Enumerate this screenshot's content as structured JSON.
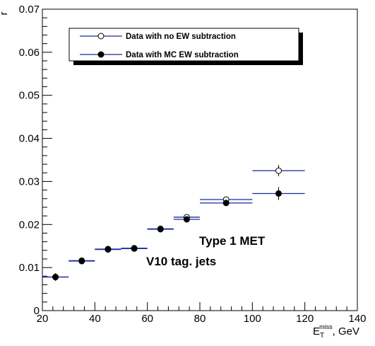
{
  "chart_data": {
    "type": "scatter",
    "xlabel": "E",
    "xlabel_sub": "T",
    "xlabel_sup": "miss",
    "xlabel_unit": ", GeV",
    "ylabel": "r",
    "xlim": [
      20,
      140
    ],
    "ylim": [
      0,
      0.07
    ],
    "x_ticks": [
      "20",
      "40",
      "60",
      "80",
      "100",
      "120",
      "140"
    ],
    "y_ticks": [
      "0",
      "0.01",
      "0.02",
      "0.03",
      "0.04",
      "0.05",
      "0.06",
      "0.07"
    ],
    "legend_position": "top-left",
    "annotations": [
      "Type 1 MET",
      "V10 tag. jets"
    ],
    "series": [
      {
        "name": "Data with no EW subtraction",
        "marker": "open-circle",
        "color": "#1a2a9c",
        "points": [
          {
            "x": 25,
            "xlo": 20,
            "xhi": 30,
            "y": 0.0078,
            "yerr": 0.0009
          },
          {
            "x": 35,
            "xlo": 30,
            "xhi": 40,
            "y": 0.0116,
            "yerr": 0.0006
          },
          {
            "x": 45,
            "xlo": 40,
            "xhi": 50,
            "y": 0.0143,
            "yerr": 0.0005
          },
          {
            "x": 55,
            "xlo": 50,
            "xhi": 60,
            "y": 0.0145,
            "yerr": 0.0005
          },
          {
            "x": 65,
            "xlo": 60,
            "xhi": 70,
            "y": 0.019,
            "yerr": 0.0005
          },
          {
            "x": 75,
            "xlo": 70,
            "xhi": 80,
            "y": 0.0217,
            "yerr": 0.0006
          },
          {
            "x": 90,
            "xlo": 80,
            "xhi": 100,
            "y": 0.0258,
            "yerr": 0.0006
          },
          {
            "x": 110,
            "xlo": 100,
            "xhi": 120,
            "y": 0.0325,
            "yerr": 0.0013
          }
        ]
      },
      {
        "name": "Data with MC EW subtraction",
        "marker": "filled-circle",
        "color": "#1a2a9c",
        "points": [
          {
            "x": 25,
            "xlo": 20,
            "xhi": 30,
            "y": 0.0078,
            "yerr": 0.0009
          },
          {
            "x": 35,
            "xlo": 30,
            "xhi": 40,
            "y": 0.0115,
            "yerr": 0.0006
          },
          {
            "x": 45,
            "xlo": 40,
            "xhi": 50,
            "y": 0.0142,
            "yerr": 0.0005
          },
          {
            "x": 55,
            "xlo": 50,
            "xhi": 60,
            "y": 0.0144,
            "yerr": 0.0005
          },
          {
            "x": 65,
            "xlo": 60,
            "xhi": 70,
            "y": 0.0189,
            "yerr": 0.0005
          },
          {
            "x": 75,
            "xlo": 70,
            "xhi": 80,
            "y": 0.0212,
            "yerr": 0.0007
          },
          {
            "x": 90,
            "xlo": 80,
            "xhi": 100,
            "y": 0.025,
            "yerr": 0.0006
          },
          {
            "x": 110,
            "xlo": 100,
            "xhi": 120,
            "y": 0.0272,
            "yerr": 0.0015
          }
        ]
      }
    ]
  }
}
